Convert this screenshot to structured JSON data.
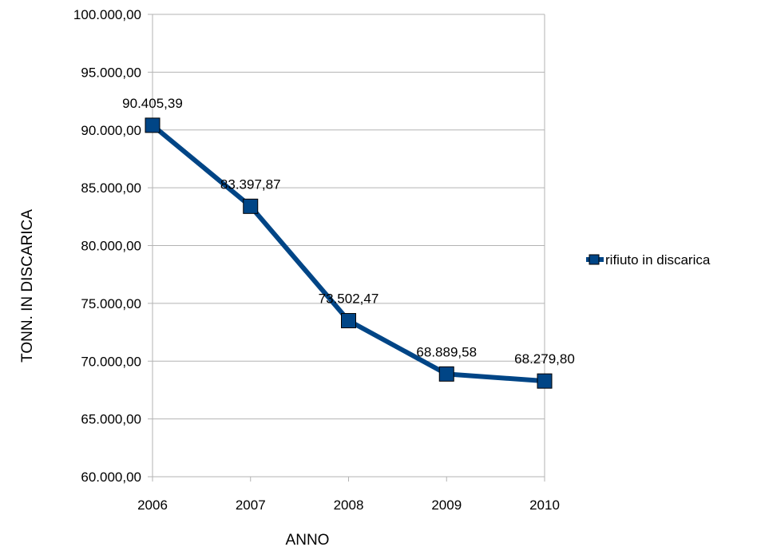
{
  "chart_data": {
    "type": "line",
    "title": "",
    "xlabel": "ANNO",
    "ylabel": "TONN. IN DISCARICA",
    "categories": [
      "2006",
      "2007",
      "2008",
      "2009",
      "2010"
    ],
    "ylim": [
      60000,
      100000
    ],
    "y_step": 5000,
    "y_tick_labels": [
      "60.000,00",
      "65.000,00",
      "70.000,00",
      "75.000,00",
      "80.000,00",
      "85.000,00",
      "90.000,00",
      "95.000,00",
      "100.000,00"
    ],
    "series": [
      {
        "name": "rifiuto in discarica",
        "values": [
          90405.39,
          83397.87,
          73502.47,
          68889.58,
          68279.8
        ],
        "labels": [
          "90.405,39",
          "83.397,87",
          "73.502,47",
          "68.889,58",
          "68.279,80"
        ],
        "color": "#004586",
        "marker": "square"
      }
    ],
    "grid": "horizontal",
    "legend": "right"
  }
}
